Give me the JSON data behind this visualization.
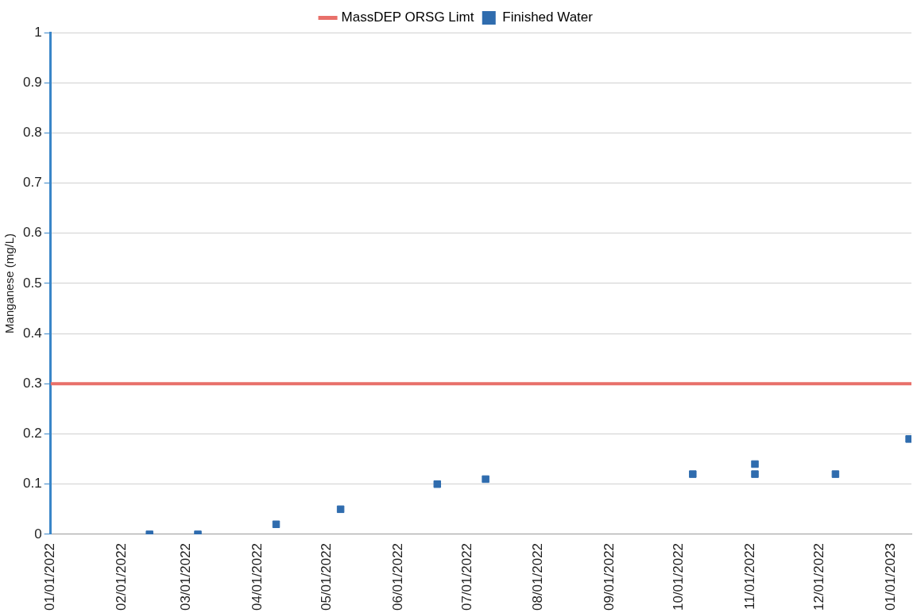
{
  "chart_data": {
    "type": "scatter",
    "ylabel": "Manganese (mg/L)",
    "x": [
      "2022-02-13",
      "2022-03-06",
      "2022-04-09",
      "2022-05-07",
      "2022-06-18",
      "2022-07-09",
      "2022-10-07",
      "2022-11-03",
      "2022-11-03",
      "2022-12-08",
      "2023-01-09"
    ],
    "series": [
      {
        "name": "Finished Water",
        "color": "#2f6cae",
        "values": [
          0,
          0,
          0.02,
          0.05,
          0.1,
          0.11,
          0.12,
          0.14,
          0.12,
          0.12,
          0.19
        ]
      }
    ],
    "ref_lines": [
      {
        "axis": "y",
        "value": 0.3,
        "label": "MassDEP ORSG Limt",
        "color": "#e8706a"
      }
    ],
    "xlim": [
      "2022-01-01",
      "2023-01-10"
    ],
    "xticks": [
      {
        "value": "2022-01-01",
        "label": "01/01/2022"
      },
      {
        "value": "2022-02-01",
        "label": "02/01/2022"
      },
      {
        "value": "2022-03-01",
        "label": "03/01/2022"
      },
      {
        "value": "2022-04-01",
        "label": "04/01/2022"
      },
      {
        "value": "2022-05-01",
        "label": "05/01/2022"
      },
      {
        "value": "2022-06-01",
        "label": "06/01/2022"
      },
      {
        "value": "2022-07-01",
        "label": "07/01/2022"
      },
      {
        "value": "2022-08-01",
        "label": "08/01/2022"
      },
      {
        "value": "2022-09-01",
        "label": "09/01/2022"
      },
      {
        "value": "2022-10-01",
        "label": "10/01/2022"
      },
      {
        "value": "2022-11-01",
        "label": "11/01/2022"
      },
      {
        "value": "2022-12-01",
        "label": "12/01/2022"
      },
      {
        "value": "2023-01-01",
        "label": "01/01/2023"
      }
    ],
    "ylim": [
      0,
      1
    ],
    "yticks": [
      0,
      0.1,
      0.2,
      0.3,
      0.4,
      0.5,
      0.6,
      0.7,
      0.8,
      0.9,
      1
    ],
    "grid": "y",
    "legend": "top",
    "marker": "square"
  }
}
